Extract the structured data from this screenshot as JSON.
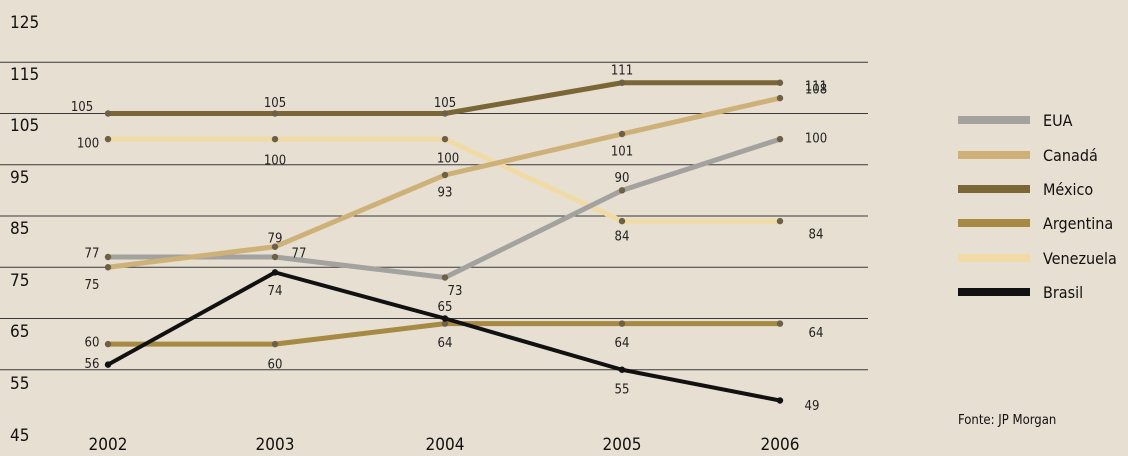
{
  "chart_data": {
    "type": "line",
    "x": [
      "2002",
      "2003",
      "2004",
      "2005",
      "2006"
    ],
    "ylim": [
      45,
      125
    ],
    "yticks": [
      "125",
      "115",
      "105",
      "95",
      "85",
      "75",
      "65",
      "55",
      "45"
    ],
    "grid": true,
    "legend_position": "right",
    "series": [
      {
        "name": "EUA",
        "color": "#a3a29f",
        "values": [
          77,
          77,
          73,
          90,
          100
        ],
        "labels": [
          "77",
          "77",
          "73",
          "90",
          "100"
        ]
      },
      {
        "name": "Canadá",
        "color": "#cdb178",
        "values": [
          75,
          79,
          93,
          101,
          108
        ],
        "labels": [
          "75",
          "79",
          "93",
          "101",
          "108"
        ]
      },
      {
        "name": "México",
        "color": "#7a6636",
        "values": [
          105,
          105,
          105,
          111,
          111
        ],
        "labels": [
          "105",
          "105",
          "105",
          "111",
          "111"
        ]
      },
      {
        "name": "Argentina",
        "color": "#a68a43",
        "values": [
          60,
          60,
          64,
          64,
          64
        ],
        "labels": [
          "60",
          "60",
          "64",
          "64",
          "64"
        ]
      },
      {
        "name": "Venezuela",
        "color": "#f0dba7",
        "values": [
          100,
          100,
          100,
          84,
          84
        ],
        "labels": [
          "100",
          "100",
          "100",
          "84",
          "84"
        ]
      },
      {
        "name": "Brasil",
        "color": "#111111",
        "values": [
          56,
          74,
          65,
          55,
          49
        ],
        "labels": [
          "56",
          "74",
          "65",
          "55",
          "49"
        ]
      }
    ],
    "source": "Fonte: JP Morgan"
  }
}
